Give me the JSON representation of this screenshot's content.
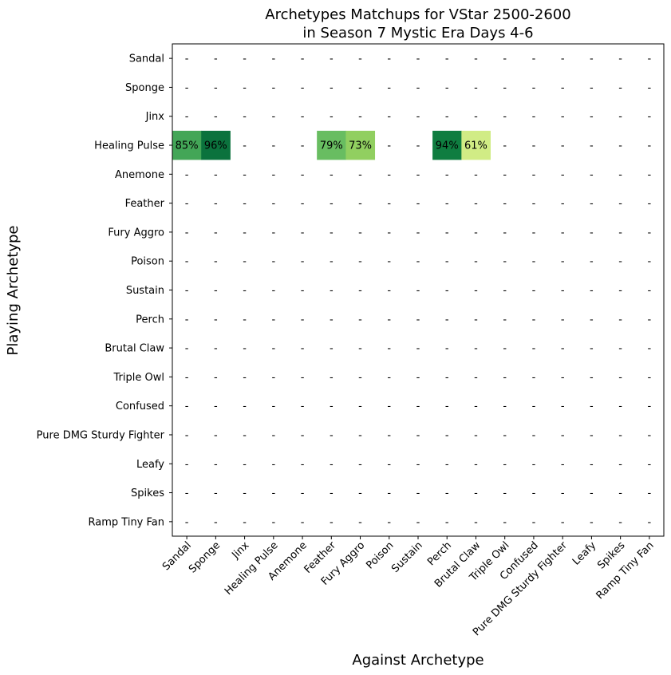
{
  "chart_data": {
    "type": "heatmap",
    "title_line1": "Archetypes Matchups for VStar 2500-2600",
    "title_line2": "in Season 7 Mystic Era Days 4-6",
    "xlabel": "Against Archetype",
    "ylabel": "Playing Archetype",
    "rows": [
      "Sandal",
      "Sponge",
      "Jinx",
      "Healing Pulse",
      "Anemone",
      "Feather",
      "Fury Aggro",
      "Poison",
      "Sustain",
      "Perch",
      "Brutal Claw",
      "Triple Owl",
      "Confused",
      "Pure DMG Sturdy Fighter",
      "Leafy",
      "Spikes",
      "Ramp Tiny Fan"
    ],
    "columns": [
      "Sandal",
      "Sponge",
      "Jinx",
      "Healing Pulse",
      "Anemone",
      "Feather",
      "Fury Aggro",
      "Poison",
      "Sustain",
      "Perch",
      "Brutal Claw",
      "Triple Owl",
      "Confused",
      "Pure DMG Sturdy Fighter",
      "Leafy",
      "Spikes",
      "Ramp Tiny Fan"
    ],
    "empty_marker": "-",
    "cells": [
      {
        "row": "Healing Pulse",
        "col": "Sandal",
        "value": 85,
        "label": "85%",
        "color": "#43a657"
      },
      {
        "row": "Healing Pulse",
        "col": "Sponge",
        "value": 96,
        "label": "96%",
        "color": "#0b723d"
      },
      {
        "row": "Healing Pulse",
        "col": "Feather",
        "value": 79,
        "label": "79%",
        "color": "#68bd61"
      },
      {
        "row": "Healing Pulse",
        "col": "Fury Aggro",
        "value": 73,
        "label": "73%",
        "color": "#91cf60"
      },
      {
        "row": "Healing Pulse",
        "col": "Perch",
        "value": 94,
        "label": "94%",
        "color": "#0f7d40"
      },
      {
        "row": "Healing Pulse",
        "col": "Brutal Claw",
        "value": 61,
        "label": "61%",
        "color": "#d1ec85"
      }
    ],
    "grid": false,
    "colormap": "RdYlGn"
  }
}
